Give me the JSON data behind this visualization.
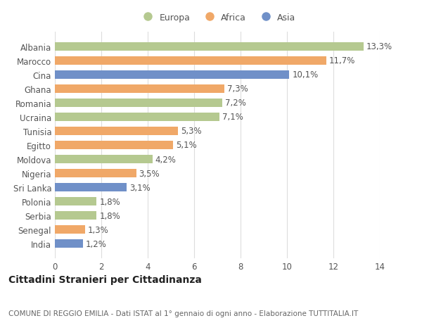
{
  "countries": [
    "Albania",
    "Marocco",
    "Cina",
    "Ghana",
    "Romania",
    "Ucraina",
    "Tunisia",
    "Egitto",
    "Moldova",
    "Nigeria",
    "Sri Lanka",
    "Polonia",
    "Serbia",
    "Senegal",
    "India"
  ],
  "values": [
    13.3,
    11.7,
    10.1,
    7.3,
    7.2,
    7.1,
    5.3,
    5.1,
    4.2,
    3.5,
    3.1,
    1.8,
    1.8,
    1.3,
    1.2
  ],
  "labels": [
    "13,3%",
    "11,7%",
    "10,1%",
    "7,3%",
    "7,2%",
    "7,1%",
    "5,3%",
    "5,1%",
    "4,2%",
    "3,5%",
    "3,1%",
    "1,8%",
    "1,8%",
    "1,3%",
    "1,2%"
  ],
  "continents": [
    "Europa",
    "Africa",
    "Asia",
    "Africa",
    "Europa",
    "Europa",
    "Africa",
    "Africa",
    "Europa",
    "Africa",
    "Asia",
    "Europa",
    "Europa",
    "Africa",
    "Asia"
  ],
  "colors": {
    "Europa": "#b5c990",
    "Africa": "#f0a868",
    "Asia": "#7090c8"
  },
  "xlim": [
    0,
    14
  ],
  "xticks": [
    0,
    2,
    4,
    6,
    8,
    10,
    12,
    14
  ],
  "plot_bg": "#ffffff",
  "fig_bg": "#ffffff",
  "grid_color": "#dddddd",
  "bar_height": 0.6,
  "label_fontsize": 8.5,
  "ytick_fontsize": 8.5,
  "xtick_fontsize": 8.5,
  "title": "Cittadini Stranieri per Cittadinanza",
  "subtitle": "COMUNE DI REGGIO EMILIA - Dati ISTAT al 1° gennaio di ogni anno - Elaborazione TUTTITALIA.IT",
  "title_fontsize": 10,
  "subtitle_fontsize": 7.5,
  "legend_fontsize": 9
}
